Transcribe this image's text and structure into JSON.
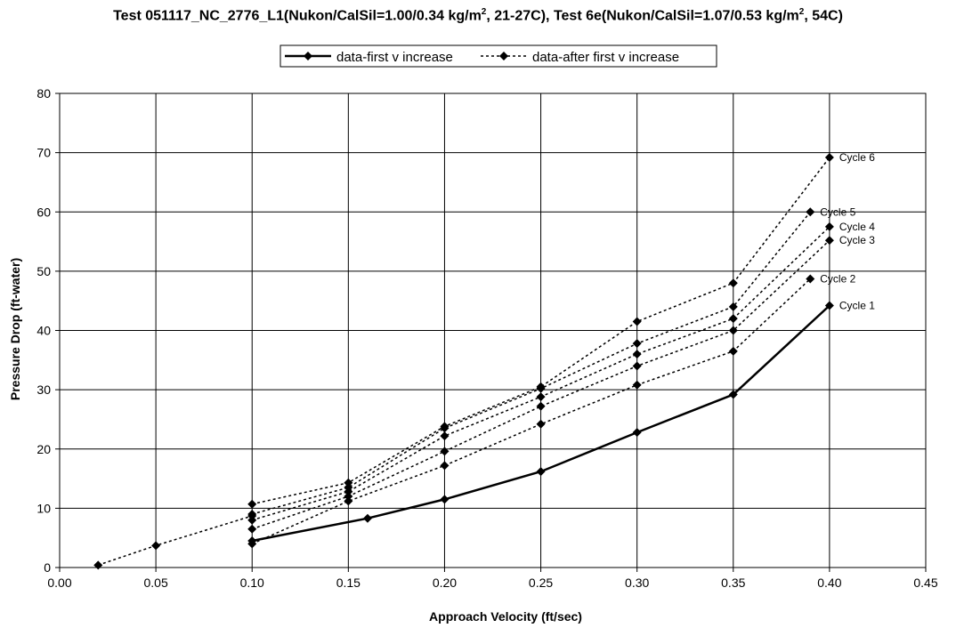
{
  "chart_data": {
    "type": "line",
    "title_parts": [
      "Test 051117_NC_2776_L1(Nukon/CalSil=1.00/0.34 kg/m",
      "2",
      ", 21-27C), Test 6e(Nukon/CalSil=1.07/0.53 kg/m",
      "2",
      ", 54C)"
    ],
    "xlabel": "Approach Velocity (ft/sec)",
    "ylabel": "Pressure Drop (ft-water)",
    "xlim": [
      0,
      0.45
    ],
    "ylim": [
      0,
      80
    ],
    "x_ticks": [
      "0.00",
      "0.05",
      "0.10",
      "0.15",
      "0.20",
      "0.25",
      "0.30",
      "0.35",
      "0.40",
      "0.45"
    ],
    "y_ticks": [
      "0",
      "10",
      "20",
      "30",
      "40",
      "50",
      "60",
      "70",
      "80"
    ],
    "grid": true,
    "legend_position": "top-center",
    "series": [
      {
        "name": "data-first v increase",
        "style": "solid",
        "points": [
          [
            0.1,
            4.5
          ],
          [
            0.16,
            8.3
          ],
          [
            0.2,
            11.5
          ],
          [
            0.25,
            16.2
          ],
          [
            0.3,
            22.8
          ],
          [
            0.35,
            29.2
          ],
          [
            0.4,
            44.2
          ]
        ]
      },
      {
        "name": "data-after first v increase",
        "style": "dotted",
        "segments": [
          [
            [
              0.1,
              4.0
            ],
            [
              0.15,
              11.2
            ],
            [
              0.2,
              17.2
            ],
            [
              0.25,
              24.2
            ],
            [
              0.3,
              30.8
            ],
            [
              0.35,
              36.5
            ],
            [
              0.39,
              48.7
            ]
          ],
          [
            [
              0.1,
              6.5
            ],
            [
              0.15,
              12.0
            ],
            [
              0.2,
              19.6
            ],
            [
              0.25,
              27.2
            ],
            [
              0.3,
              34.0
            ],
            [
              0.35,
              40.0
            ],
            [
              0.4,
              55.2
            ]
          ],
          [
            [
              0.1,
              8.0
            ],
            [
              0.15,
              12.8
            ],
            [
              0.2,
              22.2
            ],
            [
              0.25,
              28.8
            ],
            [
              0.3,
              36.0
            ],
            [
              0.35,
              42.0
            ],
            [
              0.4,
              57.5
            ]
          ],
          [
            [
              0.1,
              9.0
            ],
            [
              0.15,
              13.5
            ],
            [
              0.2,
              23.5
            ],
            [
              0.25,
              30.2
            ],
            [
              0.3,
              37.8
            ],
            [
              0.35,
              44.0
            ],
            [
              0.39,
              60.0
            ]
          ],
          [
            [
              0.1,
              10.7
            ],
            [
              0.15,
              14.3
            ],
            [
              0.2,
              23.8
            ],
            [
              0.25,
              30.5
            ],
            [
              0.3,
              41.5
            ],
            [
              0.35,
              48.0
            ],
            [
              0.4,
              69.2
            ]
          ],
          [
            [
              0.02,
              0.4
            ],
            [
              0.05,
              3.7
            ],
            [
              0.1,
              8.7
            ]
          ]
        ]
      }
    ],
    "annotations": [
      {
        "text": "Cycle 1",
        "x": 0.4,
        "y": 44.2
      },
      {
        "text": "Cycle 2",
        "x": 0.39,
        "y": 48.7
      },
      {
        "text": "Cycle 3",
        "x": 0.4,
        "y": 55.2
      },
      {
        "text": "Cycle 4",
        "x": 0.4,
        "y": 57.5
      },
      {
        "text": "Cycle 5",
        "x": 0.39,
        "y": 60.0
      },
      {
        "text": "Cycle 6",
        "x": 0.4,
        "y": 69.2
      }
    ],
    "colors": {
      "line": "#000000",
      "grid": "#000000",
      "background": "#ffffff"
    }
  }
}
